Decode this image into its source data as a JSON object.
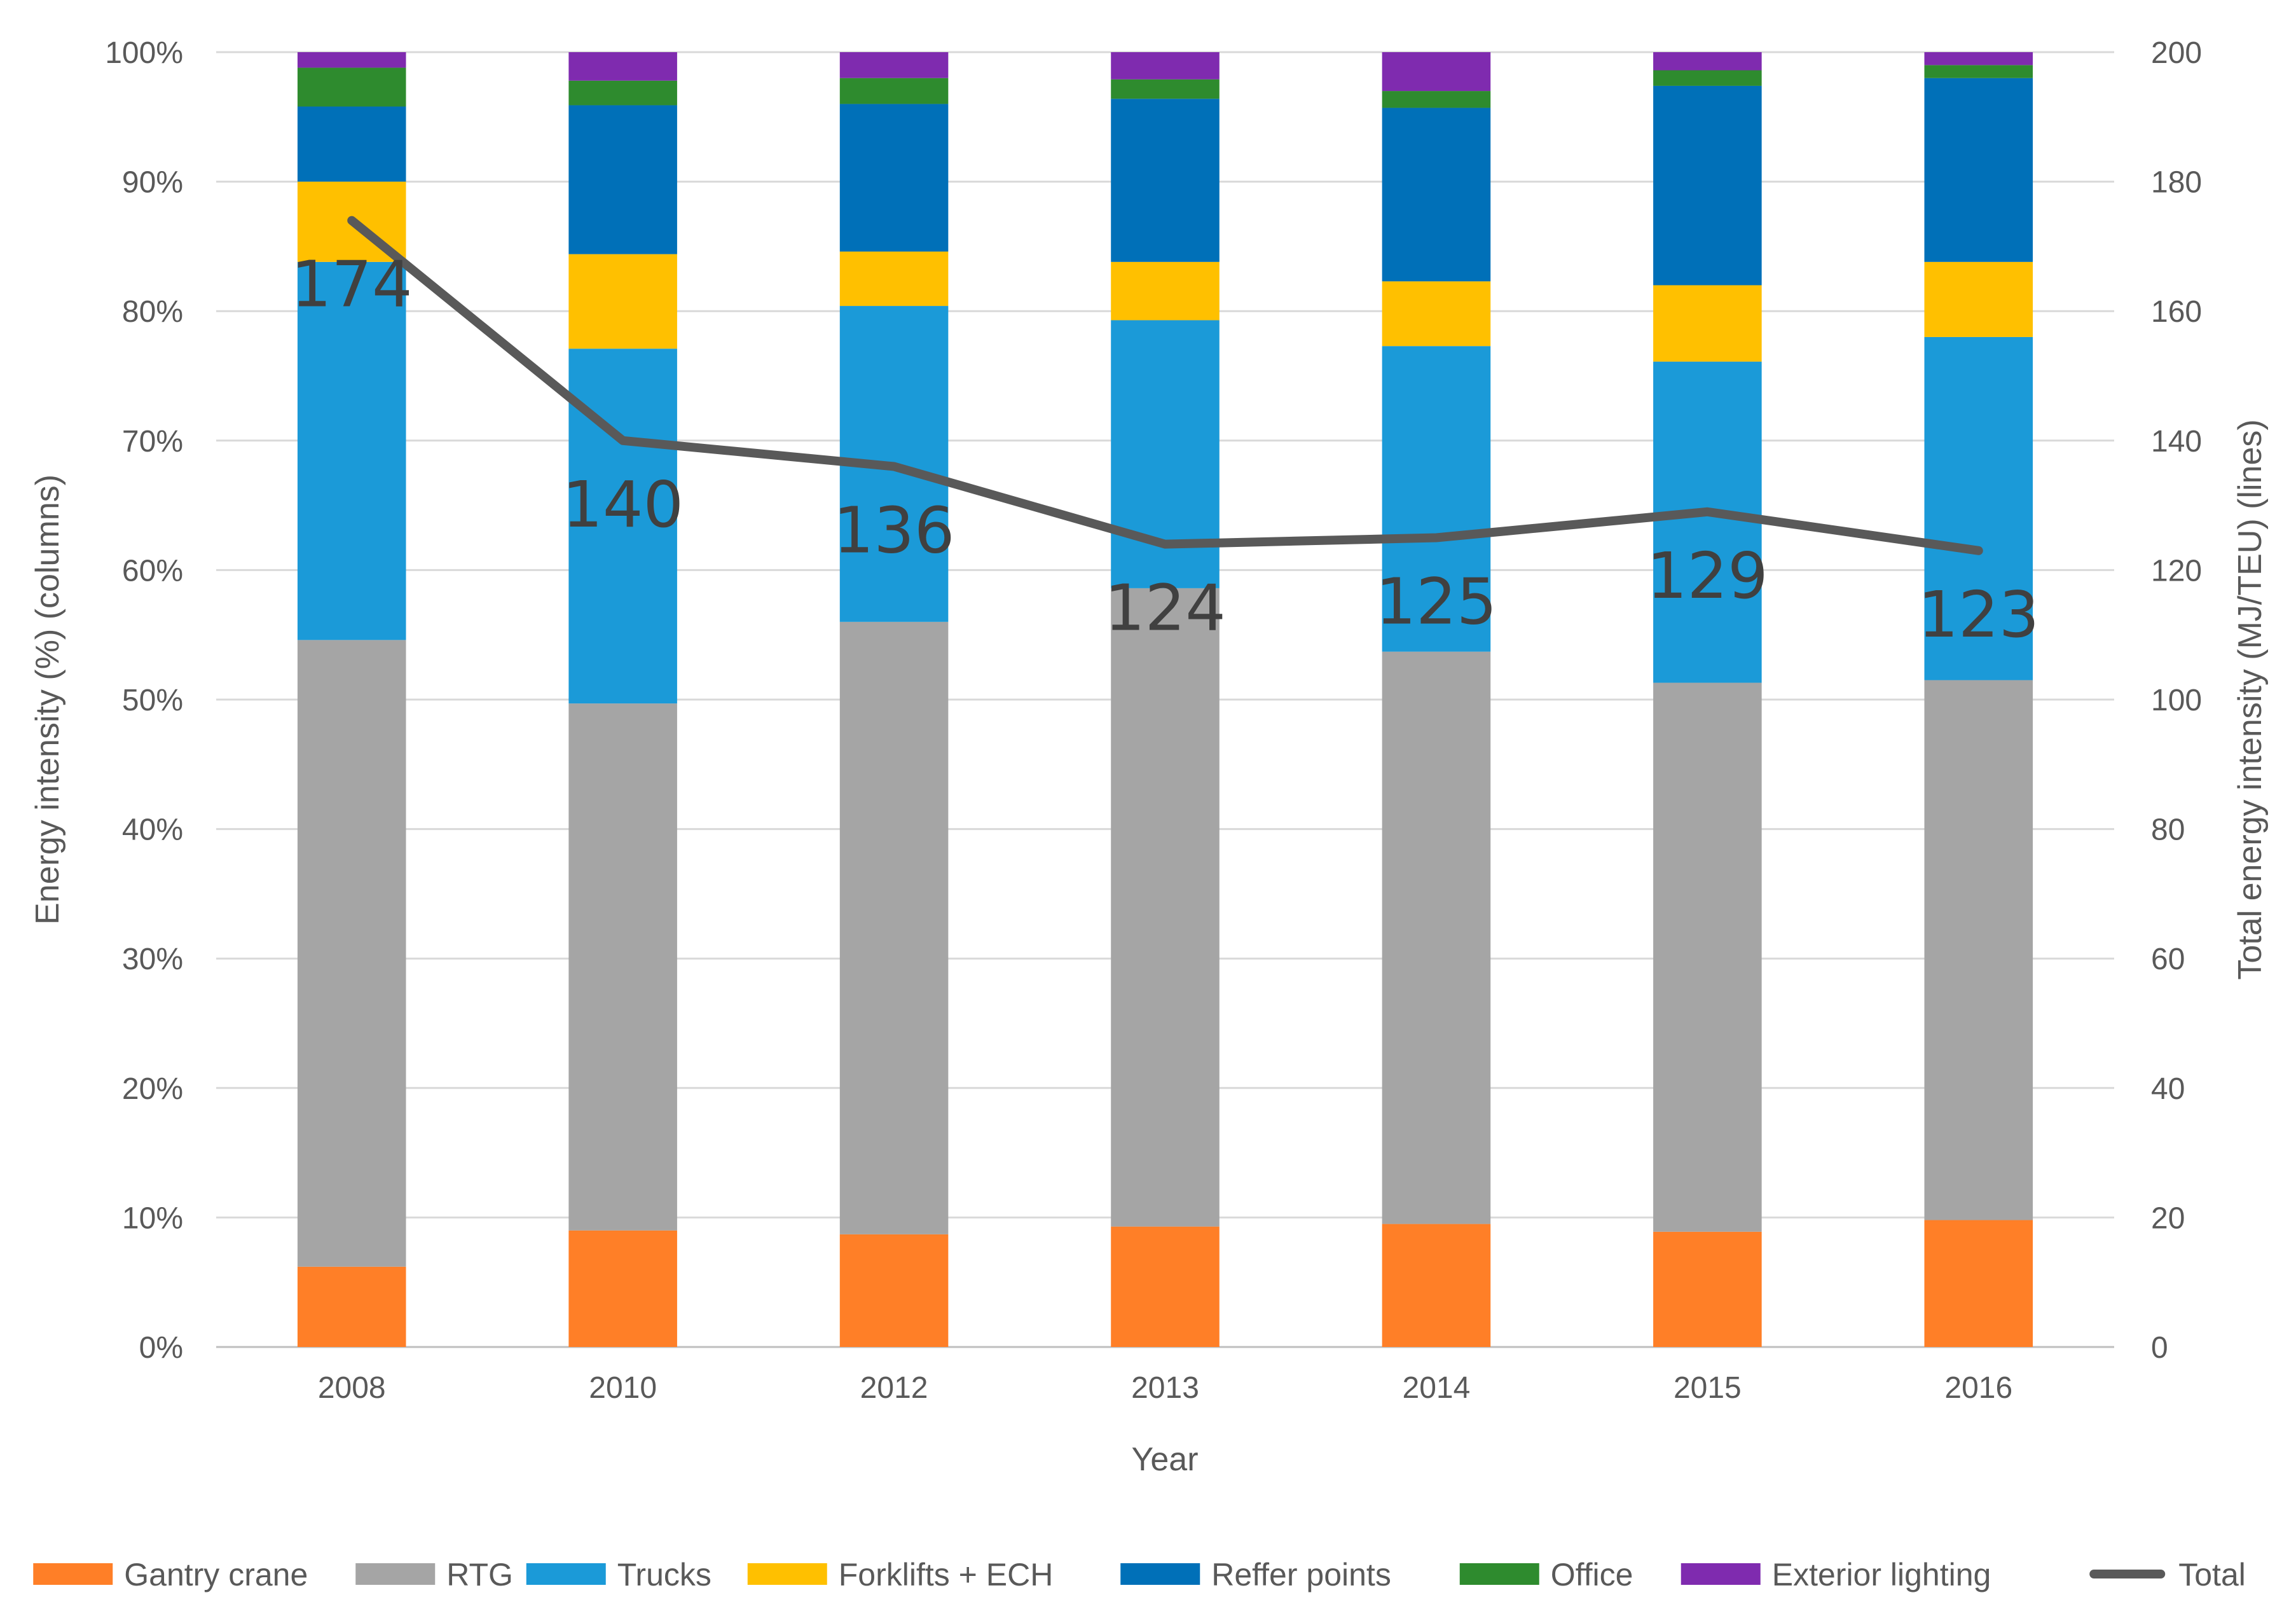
{
  "chart_data": {
    "type": "bar",
    "stacked": true,
    "categories": [
      "2008",
      "2010",
      "2012",
      "2013",
      "2014",
      "2015",
      "2016"
    ],
    "xlabel": "Year",
    "ylabel": "Energy intensity (%) (columns)",
    "y2label": "Total energy intensity (MJ/TEU) (lines)",
    "ylim": [
      0,
      100
    ],
    "y2lim": [
      0,
      200
    ],
    "yticks": [
      "0%",
      "10%",
      "20%",
      "30%",
      "40%",
      "50%",
      "60%",
      "70%",
      "80%",
      "90%",
      "100%"
    ],
    "y2ticks": [
      "0",
      "20",
      "40",
      "60",
      "80",
      "100",
      "120",
      "140",
      "160",
      "180",
      "200"
    ],
    "grid": true,
    "legend_position": "bottom",
    "series": [
      {
        "name": "Gantry crane",
        "color": "#FF7F27",
        "values": [
          6.2,
          9.0,
          8.7,
          9.3,
          9.5,
          8.9,
          9.8
        ]
      },
      {
        "name": "RTG",
        "color": "#A5A5A5",
        "values": [
          48.4,
          40.7,
          47.3,
          49.3,
          44.2,
          42.4,
          41.7
        ]
      },
      {
        "name": "Trucks",
        "color": "#1B9AD8",
        "values": [
          29.2,
          27.4,
          24.4,
          20.7,
          23.6,
          24.8,
          26.5
        ]
      },
      {
        "name": "Forklifts + ECH",
        "color": "#FFC000",
        "values": [
          6.2,
          7.3,
          4.2,
          4.5,
          5.0,
          5.9,
          5.8
        ]
      },
      {
        "name": "Reffer points",
        "color": "#0070B8",
        "values": [
          5.8,
          11.5,
          11.4,
          12.6,
          13.4,
          15.4,
          14.2
        ]
      },
      {
        "name": "Office",
        "color": "#2E8B2E",
        "values": [
          3.0,
          1.9,
          2.0,
          1.5,
          1.3,
          1.2,
          1.0
        ]
      },
      {
        "name": "Exterior lighting",
        "color": "#7F2BAF",
        "values": [
          1.2,
          2.2,
          2.0,
          2.1,
          3.0,
          1.4,
          1.0
        ]
      }
    ],
    "line": {
      "name": "Total",
      "color": "#595959",
      "axis": "secondary",
      "values": [
        174,
        140,
        136,
        124,
        125,
        129,
        123
      ],
      "labels": [
        "174",
        "140",
        "136",
        "124",
        "125",
        "129",
        "123"
      ]
    }
  }
}
